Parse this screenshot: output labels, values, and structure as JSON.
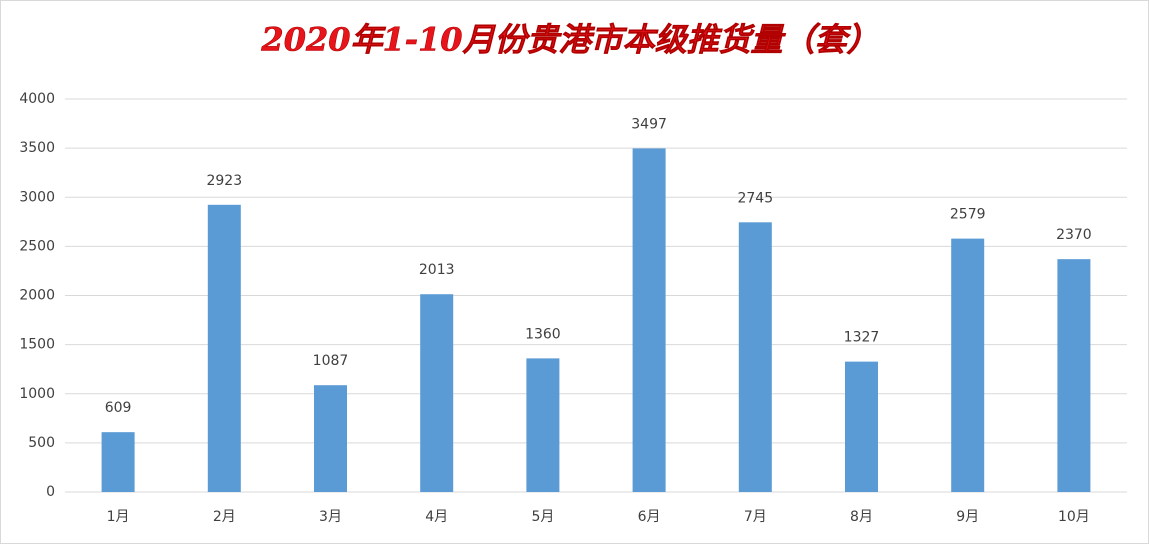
{
  "chart_data": {
    "type": "bar",
    "title": "2020年1-10月份贵港市本级推货量（套）",
    "categories": [
      "1月",
      "2月",
      "3月",
      "4月",
      "5月",
      "6月",
      "7月",
      "8月",
      "9月",
      "10月"
    ],
    "values": [
      609,
      2923,
      1087,
      2013,
      1360,
      3497,
      2745,
      1327,
      2579,
      2370
    ],
    "color": "#5b9bd5",
    "ylim": [
      0,
      4000
    ],
    "yticks": [
      0,
      500,
      1000,
      1500,
      2000,
      2500,
      3000,
      3500,
      4000
    ],
    "grid": true,
    "data_labels": true
  }
}
